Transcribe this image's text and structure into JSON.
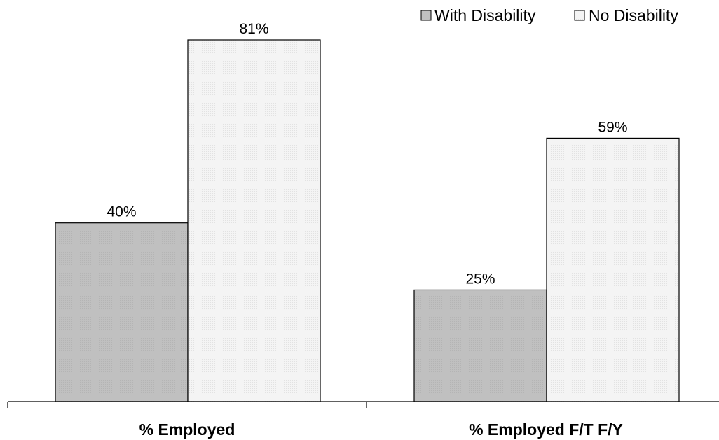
{
  "chart_data": {
    "type": "bar",
    "categories": [
      "% Employed",
      "% Employed F/T F/Y"
    ],
    "series": [
      {
        "name": "With Disability",
        "values": [
          40,
          25
        ],
        "labels": [
          "40%",
          "25%"
        ],
        "color": "#c0c0c0"
      },
      {
        "name": "No Disability",
        "values": [
          81,
          59
        ],
        "labels": [
          "81%",
          "59%"
        ],
        "color": "#f4f4f4"
      }
    ],
    "ylim": [
      0,
      81
    ],
    "grid": false,
    "legend_position": "top-right",
    "title": "",
    "xlabel": "",
    "ylabel": ""
  }
}
